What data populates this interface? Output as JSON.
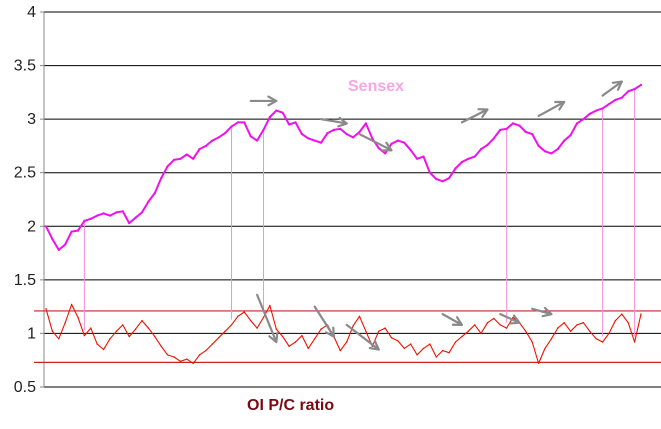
{
  "chart_data": {
    "type": "line",
    "title": "",
    "xlabel": "",
    "ylabel": "",
    "ylim": [
      0.5,
      4
    ],
    "yticks": [
      "0.5",
      "1",
      "1.5",
      "2",
      "2.5",
      "3",
      "3.5",
      "4"
    ],
    "grid": true,
    "series": [
      {
        "name": "Sensex",
        "color": "#ee11ee",
        "label_color": "#f4a6e6",
        "values": [
          2.0,
          1.88,
          1.78,
          1.83,
          1.95,
          1.96,
          2.05,
          2.07,
          2.1,
          2.12,
          2.1,
          2.13,
          2.14,
          2.03,
          2.08,
          2.13,
          2.23,
          2.31,
          2.45,
          2.56,
          2.62,
          2.63,
          2.67,
          2.63,
          2.72,
          2.75,
          2.8,
          2.83,
          2.87,
          2.93,
          2.97,
          2.97,
          2.84,
          2.8,
          2.9,
          3.02,
          3.08,
          3.06,
          2.95,
          2.97,
          2.86,
          2.82,
          2.8,
          2.78,
          2.87,
          2.9,
          2.91,
          2.86,
          2.83,
          2.88,
          2.96,
          2.82,
          2.73,
          2.68,
          2.77,
          2.8,
          2.78,
          2.71,
          2.63,
          2.65,
          2.5,
          2.44,
          2.42,
          2.45,
          2.54,
          2.6,
          2.63,
          2.65,
          2.72,
          2.76,
          2.82,
          2.9,
          2.91,
          2.96,
          2.94,
          2.88,
          2.86,
          2.75,
          2.7,
          2.68,
          2.72,
          2.8,
          2.85,
          2.96,
          3.0,
          3.05,
          3.08,
          3.1,
          3.14,
          3.18,
          3.2,
          3.26,
          3.28,
          3.32
        ]
      },
      {
        "name": "OI P/C ratio",
        "color": "#ee1100",
        "label_color": "#7a0a12",
        "values": [
          1.23,
          1.02,
          0.95,
          1.1,
          1.27,
          1.15,
          0.98,
          1.05,
          0.9,
          0.85,
          0.95,
          1.02,
          1.08,
          0.97,
          1.04,
          1.12,
          1.05,
          0.97,
          0.88,
          0.8,
          0.78,
          0.74,
          0.76,
          0.72,
          0.8,
          0.84,
          0.9,
          0.96,
          1.02,
          1.08,
          1.16,
          1.2,
          1.12,
          1.05,
          1.15,
          1.26,
          1.04,
          0.97,
          0.88,
          0.92,
          0.98,
          0.86,
          0.95,
          1.04,
          1.08,
          0.97,
          0.84,
          0.92,
          1.07,
          1.16,
          1.02,
          0.88,
          1.02,
          1.05,
          0.96,
          0.93,
          0.86,
          0.9,
          0.8,
          0.86,
          0.9,
          0.78,
          0.84,
          0.82,
          0.92,
          0.97,
          1.02,
          1.08,
          1.0,
          1.1,
          1.14,
          1.08,
          1.05,
          1.15,
          1.1,
          1.02,
          0.92,
          0.72,
          0.86,
          0.95,
          1.05,
          1.1,
          1.02,
          1.08,
          1.1,
          1.02,
          0.95,
          0.92,
          1.0,
          1.12,
          1.18,
          1.1,
          0.92,
          1.18
        ]
      }
    ],
    "reference_lines": [
      {
        "value": 1.21,
        "color": "#cc2222"
      },
      {
        "value": 0.73,
        "color": "#cc2222"
      }
    ],
    "connector_indices": [
      6,
      29,
      34,
      72,
      87,
      92
    ],
    "annotation_arrows": [
      {
        "series": "Sensex",
        "from": [
          32,
          3.17
        ],
        "to": [
          36,
          3.17
        ]
      },
      {
        "series": "Sensex",
        "from": [
          43,
          3.0
        ],
        "to": [
          47,
          2.96
        ]
      },
      {
        "series": "Sensex",
        "from": [
          49,
          2.86
        ],
        "to": [
          54,
          2.71
        ]
      },
      {
        "series": "Sensex",
        "from": [
          65,
          2.97
        ],
        "to": [
          69,
          3.09
        ]
      },
      {
        "series": "Sensex",
        "from": [
          77,
          3.03
        ],
        "to": [
          81,
          3.16
        ]
      },
      {
        "series": "Sensex",
        "from": [
          87,
          3.22
        ],
        "to": [
          90,
          3.35
        ]
      },
      {
        "series": "OI P/C ratio",
        "from": [
          33,
          1.36
        ],
        "to": [
          36,
          0.92
        ]
      },
      {
        "series": "OI P/C ratio",
        "from": [
          42,
          1.25
        ],
        "to": [
          45,
          0.97
        ]
      },
      {
        "series": "OI P/C ratio",
        "from": [
          47,
          1.08
        ],
        "to": [
          52,
          0.85
        ]
      },
      {
        "series": "OI P/C ratio",
        "from": [
          62,
          1.18
        ],
        "to": [
          65,
          1.08
        ]
      },
      {
        "series": "OI P/C ratio",
        "from": [
          71,
          1.18
        ],
        "to": [
          74,
          1.1
        ]
      },
      {
        "series": "OI P/C ratio",
        "from": [
          76,
          1.23
        ],
        "to": [
          79,
          1.18
        ]
      }
    ]
  }
}
